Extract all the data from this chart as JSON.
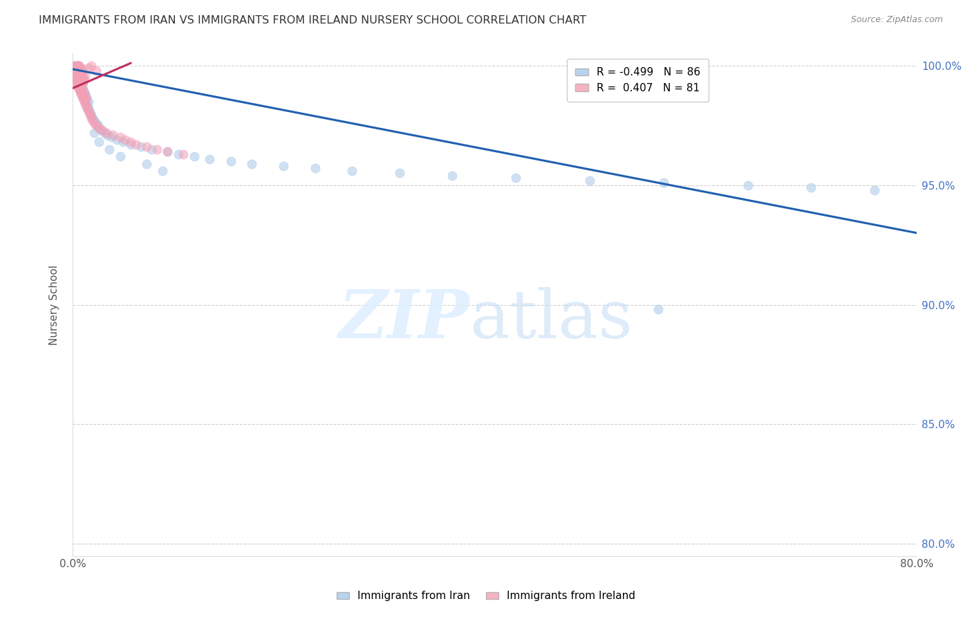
{
  "title": "IMMIGRANTS FROM IRAN VS IMMIGRANTS FROM IRELAND NURSERY SCHOOL CORRELATION CHART",
  "source": "Source: ZipAtlas.com",
  "ylabel": "Nursery School",
  "xmin": 0.0,
  "xmax": 0.8,
  "ymin": 0.795,
  "ymax": 1.005,
  "ytick_vals": [
    1.0,
    0.95,
    0.9,
    0.85,
    0.8
  ],
  "ytick_labels": [
    "100.0%",
    "95.0%",
    "90.0%",
    "85.0%",
    "80.0%"
  ],
  "xtick_vals": [
    0.0,
    0.1,
    0.2,
    0.3,
    0.4,
    0.5,
    0.6,
    0.7,
    0.8
  ],
  "xtick_labels": [
    "0.0%",
    "",
    "",
    "",
    "",
    "",
    "",
    "",
    "80.0%"
  ],
  "iran_color": "#a8c8e8",
  "ireland_color": "#f4a0b5",
  "iran_line_color": "#2060b0",
  "ireland_line_color": "#c03060",
  "iran_line_x": [
    0.0,
    0.8
  ],
  "iran_line_y": [
    0.9985,
    0.93
  ],
  "ireland_line_x": [
    0.0,
    0.055
  ],
  "ireland_line_y": [
    0.9905,
    1.001
  ],
  "iran_scatter_x": [
    0.002,
    0.002,
    0.003,
    0.003,
    0.003,
    0.003,
    0.004,
    0.004,
    0.004,
    0.004,
    0.004,
    0.005,
    0.005,
    0.005,
    0.005,
    0.005,
    0.005,
    0.005,
    0.006,
    0.006,
    0.006,
    0.006,
    0.006,
    0.007,
    0.007,
    0.007,
    0.007,
    0.008,
    0.008,
    0.008,
    0.008,
    0.009,
    0.009,
    0.009,
    0.01,
    0.01,
    0.01,
    0.011,
    0.011,
    0.012,
    0.012,
    0.013,
    0.013,
    0.014,
    0.015,
    0.015,
    0.016,
    0.017,
    0.018,
    0.019,
    0.02,
    0.022,
    0.024,
    0.025,
    0.027,
    0.03,
    0.033,
    0.037,
    0.042,
    0.048,
    0.055,
    0.065,
    0.075,
    0.09,
    0.1,
    0.115,
    0.13,
    0.15,
    0.17,
    0.2,
    0.23,
    0.265,
    0.31,
    0.36,
    0.42,
    0.49,
    0.56,
    0.64,
    0.7,
    0.76,
    0.02,
    0.025,
    0.035,
    0.045,
    0.07,
    0.085
  ],
  "iran_scatter_y": [
    0.998,
    1.0,
    0.996,
    0.998,
    1.0,
    0.997,
    0.994,
    0.997,
    0.999,
    1.0,
    0.996,
    0.993,
    0.996,
    0.998,
    1.0,
    0.997,
    0.994,
    0.992,
    0.991,
    0.994,
    0.997,
    0.999,
    1.0,
    0.99,
    0.993,
    0.996,
    0.999,
    0.989,
    0.992,
    0.995,
    0.998,
    0.988,
    0.991,
    0.994,
    0.987,
    0.99,
    0.993,
    0.986,
    0.989,
    0.985,
    0.988,
    0.984,
    0.987,
    0.983,
    0.982,
    0.985,
    0.981,
    0.98,
    0.979,
    0.978,
    0.977,
    0.976,
    0.975,
    0.974,
    0.973,
    0.972,
    0.971,
    0.97,
    0.969,
    0.968,
    0.967,
    0.966,
    0.965,
    0.964,
    0.963,
    0.962,
    0.961,
    0.96,
    0.959,
    0.958,
    0.957,
    0.956,
    0.955,
    0.954,
    0.953,
    0.952,
    0.951,
    0.95,
    0.949,
    0.948,
    0.972,
    0.968,
    0.965,
    0.962,
    0.959,
    0.956
  ],
  "iran_outlier_x": [
    0.555
  ],
  "iran_outlier_y": [
    0.898
  ],
  "ireland_scatter_x": [
    0.001,
    0.001,
    0.002,
    0.002,
    0.002,
    0.002,
    0.003,
    0.003,
    0.003,
    0.003,
    0.003,
    0.004,
    0.004,
    0.004,
    0.004,
    0.005,
    0.005,
    0.005,
    0.005,
    0.005,
    0.005,
    0.006,
    0.006,
    0.006,
    0.006,
    0.007,
    0.007,
    0.007,
    0.008,
    0.008,
    0.008,
    0.009,
    0.009,
    0.01,
    0.01,
    0.01,
    0.011,
    0.011,
    0.012,
    0.012,
    0.013,
    0.013,
    0.014,
    0.015,
    0.016,
    0.017,
    0.018,
    0.019,
    0.02,
    0.022,
    0.025,
    0.028,
    0.032,
    0.038,
    0.045,
    0.05,
    0.055,
    0.06,
    0.07,
    0.08,
    0.09,
    0.105,
    0.008,
    0.01,
    0.012,
    0.015,
    0.018,
    0.022,
    0.004,
    0.006,
    0.008,
    0.01,
    0.003,
    0.004,
    0.005,
    0.006,
    0.007,
    0.008,
    0.009,
    0.01,
    0.011
  ],
  "ireland_scatter_y": [
    0.996,
    0.999,
    0.994,
    0.997,
    1.0,
    0.998,
    0.993,
    0.996,
    0.999,
    1.0,
    0.997,
    0.992,
    0.995,
    0.998,
    1.0,
    0.991,
    0.994,
    0.997,
    0.999,
    1.0,
    0.998,
    0.99,
    0.993,
    0.996,
    0.999,
    0.989,
    0.992,
    0.995,
    0.988,
    0.991,
    0.994,
    0.987,
    0.99,
    0.986,
    0.989,
    0.993,
    0.985,
    0.988,
    0.984,
    0.987,
    0.983,
    0.986,
    0.982,
    0.981,
    0.98,
    0.979,
    0.978,
    0.977,
    0.976,
    0.975,
    0.974,
    0.973,
    0.972,
    0.971,
    0.97,
    0.969,
    0.968,
    0.967,
    0.966,
    0.965,
    0.964,
    0.963,
    0.99,
    0.993,
    0.996,
    0.999,
    1.0,
    0.998,
    0.997,
    1.0,
    0.999,
    0.998,
    0.995,
    0.998,
    1.0,
    0.999,
    0.998,
    0.997,
    0.996,
    0.995,
    0.994
  ]
}
